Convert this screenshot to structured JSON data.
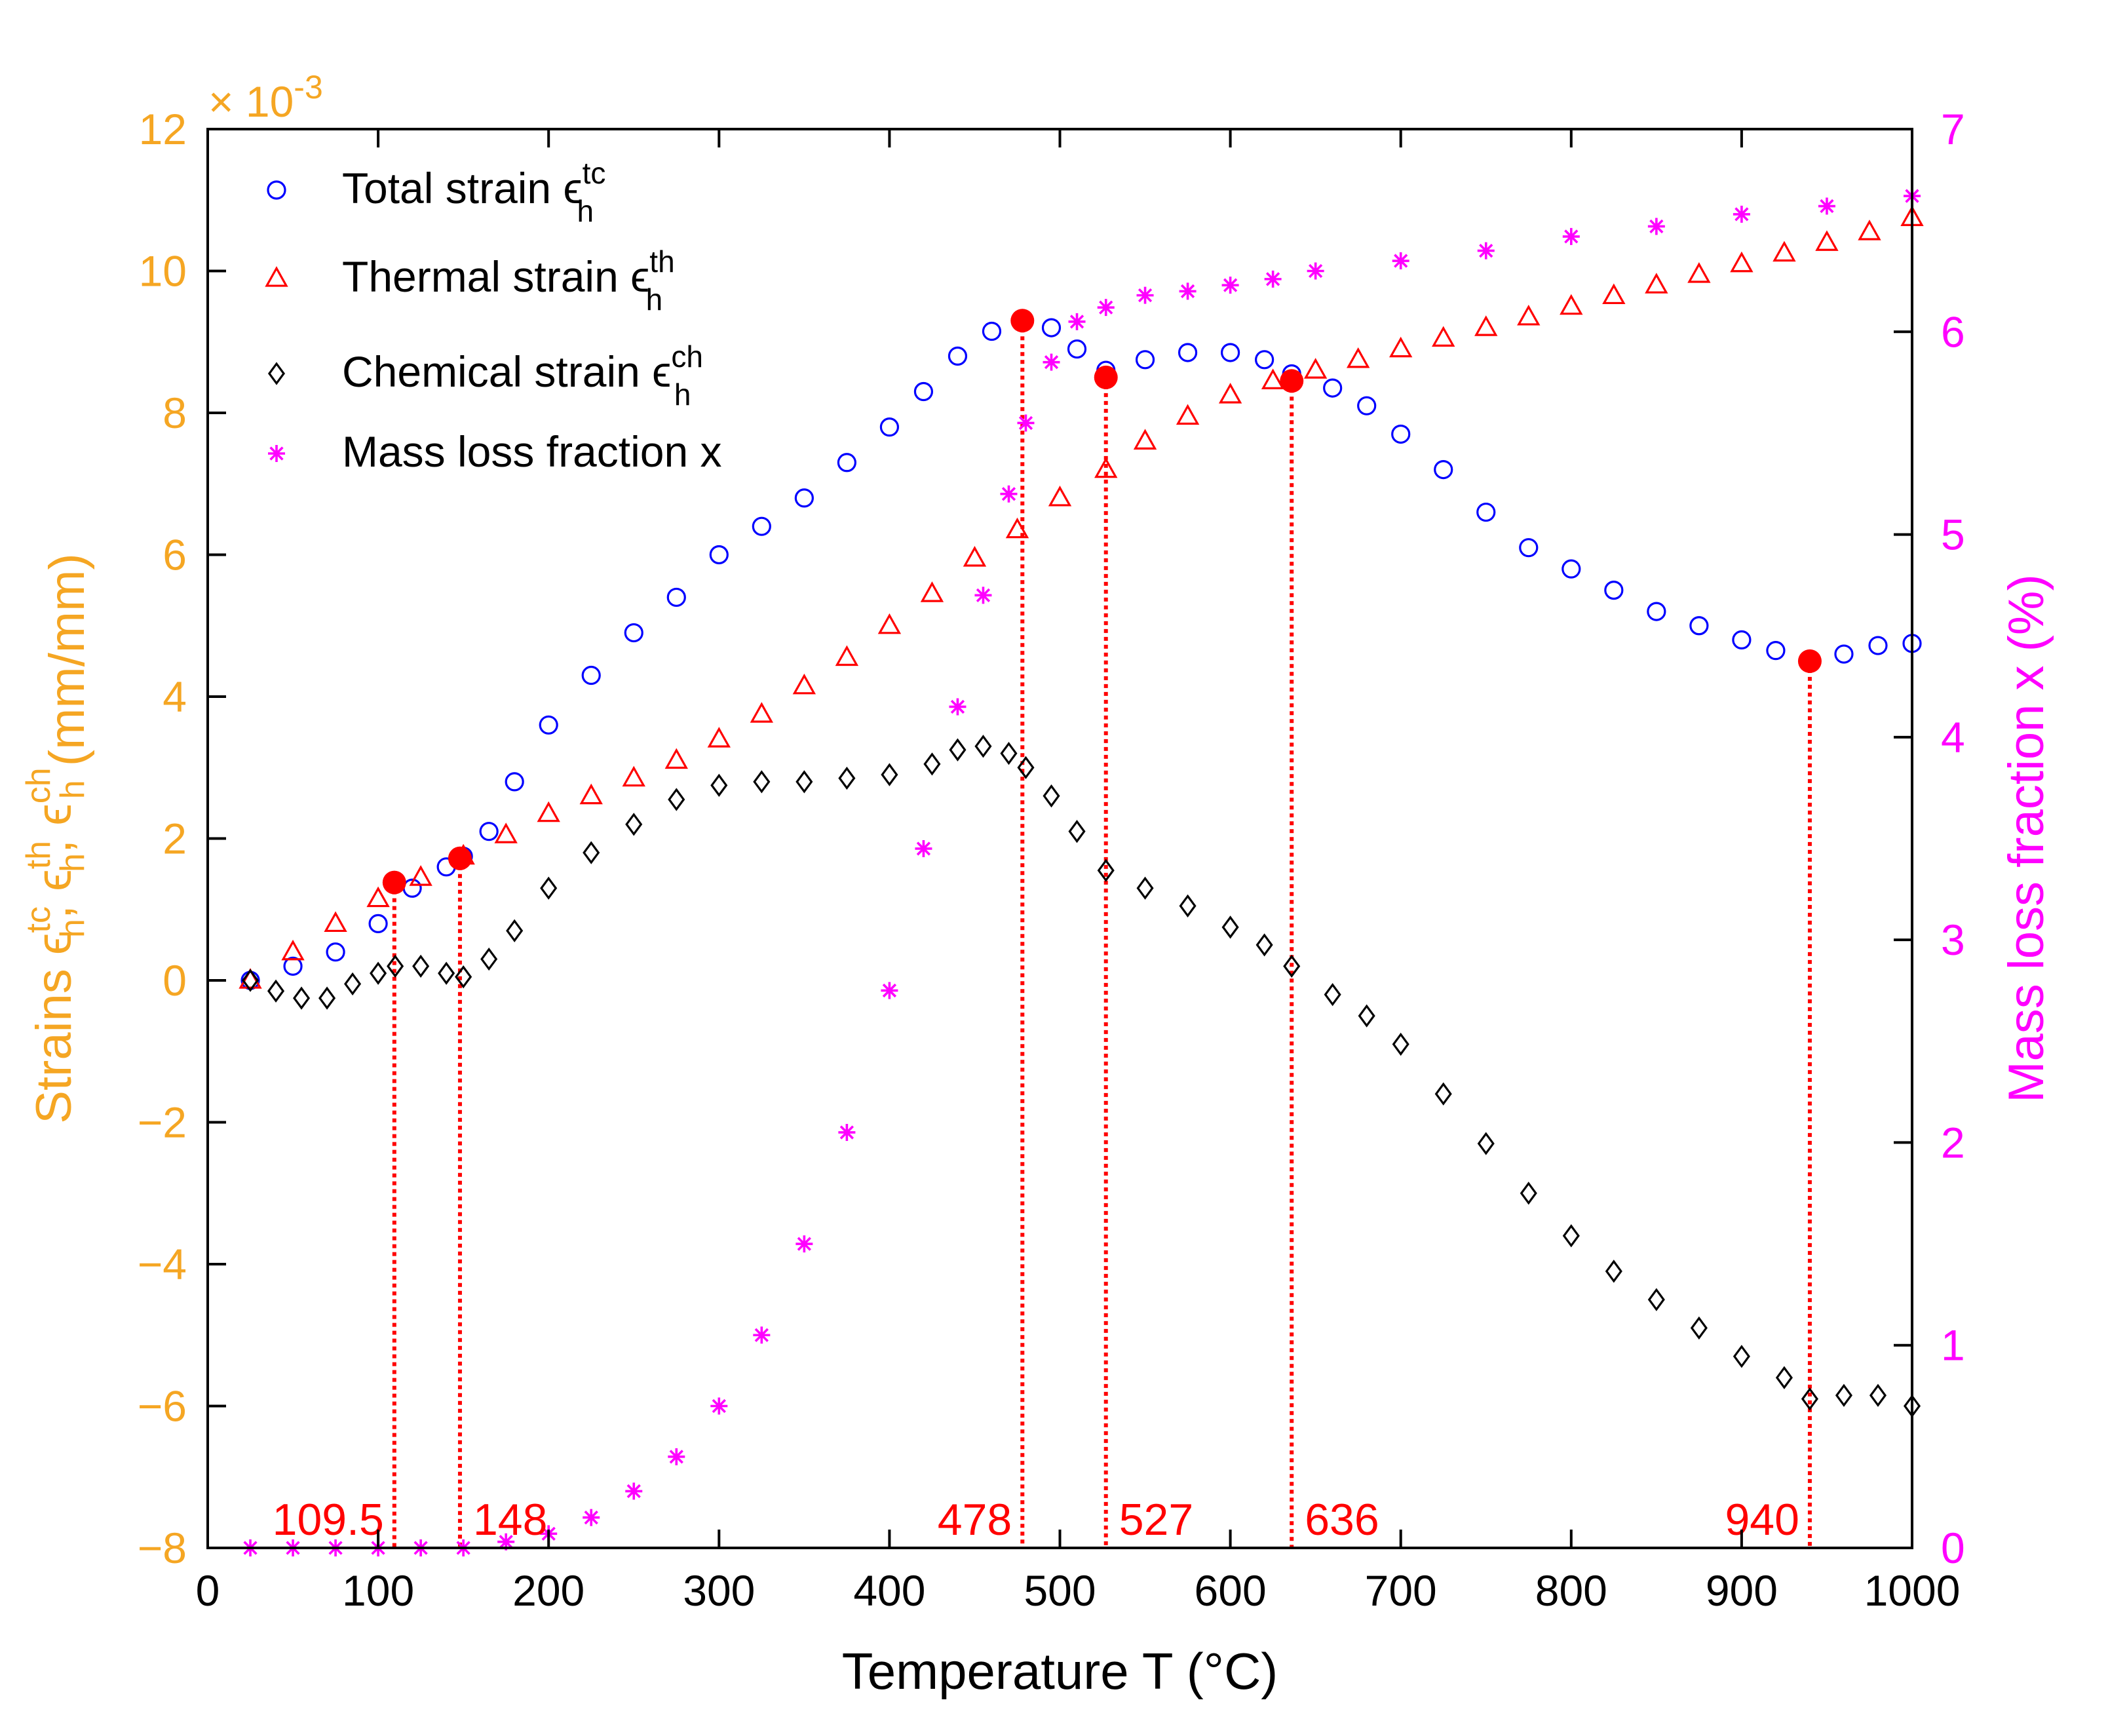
{
  "chart_data": {
    "type": "scatter",
    "x_axis": {
      "label": "Temperature T (°C)",
      "range": [
        0,
        1000
      ],
      "ticks": [
        0,
        100,
        200,
        300,
        400,
        500,
        600,
        700,
        800,
        900,
        1000
      ]
    },
    "y_axis_left": {
      "label_prefix": "Strains ",
      "label_units": " (mm/mm)",
      "eps": "ϵ",
      "sub": "h",
      "sup_tc": "tc",
      "sup_th": "th",
      "sup_ch": "ch",
      "sep": ", ",
      "range": [
        -8,
        12
      ],
      "ticks": [
        -8,
        -6,
        -4,
        -2,
        0,
        2,
        4,
        6,
        8,
        10,
        12
      ],
      "tick_labels": [
        "−8",
        "−6",
        "−4",
        "−2",
        "0",
        "2",
        "4",
        "6",
        "8",
        "10",
        "12"
      ],
      "multiplier_base": "× 10",
      "multiplier_exp": "-3",
      "color": "#f5a623"
    },
    "y_axis_right": {
      "label": "Mass loss fraction x (%)",
      "range": [
        0,
        7
      ],
      "ticks": [
        0,
        1,
        2,
        3,
        4,
        5,
        6,
        7
      ],
      "color": "#ff00ff"
    },
    "legend": {
      "placement": "top-left",
      "items": [
        {
          "label": "Total strain ",
          "eps": "ϵ",
          "sub": "h",
          "sup": "tc",
          "marker": "circle",
          "color": "#0000ff"
        },
        {
          "label": "Thermal strain ",
          "eps": "ϵ",
          "sub": "h",
          "sup": "th",
          "marker": "triangle",
          "color": "#ff0000"
        },
        {
          "label": "Chemical strain ",
          "eps": "ϵ",
          "sub": "h",
          "sup": "ch",
          "marker": "diamond",
          "color": "#000000"
        },
        {
          "label": "Mass loss fraction x",
          "eps": "",
          "sub": "",
          "sup": "",
          "marker": "star",
          "color": "#ff00ff"
        }
      ]
    },
    "series": [
      {
        "name": "Total strain",
        "axis": "left",
        "marker": "circle",
        "color": "#0000ff",
        "points": [
          [
            25,
            0.0
          ],
          [
            50,
            0.2
          ],
          [
            75,
            0.4
          ],
          [
            100,
            0.8
          ],
          [
            120,
            1.3
          ],
          [
            140,
            1.6
          ],
          [
            150,
            1.75
          ],
          [
            165,
            2.1
          ],
          [
            180,
            2.8
          ],
          [
            200,
            3.6
          ],
          [
            225,
            4.3
          ],
          [
            250,
            4.9
          ],
          [
            275,
            5.4
          ],
          [
            300,
            6.0
          ],
          [
            325,
            6.4
          ],
          [
            350,
            6.8
          ],
          [
            375,
            7.3
          ],
          [
            400,
            7.8
          ],
          [
            420,
            8.3
          ],
          [
            440,
            8.8
          ],
          [
            460,
            9.15
          ],
          [
            478,
            9.3
          ],
          [
            495,
            9.2
          ],
          [
            510,
            8.9
          ],
          [
            527,
            8.6
          ],
          [
            550,
            8.75
          ],
          [
            575,
            8.85
          ],
          [
            600,
            8.85
          ],
          [
            620,
            8.75
          ],
          [
            636,
            8.55
          ],
          [
            660,
            8.35
          ],
          [
            680,
            8.1
          ],
          [
            700,
            7.7
          ],
          [
            725,
            7.2
          ],
          [
            750,
            6.6
          ],
          [
            775,
            6.1
          ],
          [
            800,
            5.8
          ],
          [
            825,
            5.5
          ],
          [
            850,
            5.2
          ],
          [
            875,
            5.0
          ],
          [
            900,
            4.8
          ],
          [
            920,
            4.65
          ],
          [
            940,
            4.5
          ],
          [
            960,
            4.6
          ],
          [
            980,
            4.72
          ],
          [
            1000,
            4.75
          ]
        ]
      },
      {
        "name": "Thermal strain",
        "axis": "left",
        "marker": "triangle",
        "color": "#ff0000",
        "points": [
          [
            25,
            0.0
          ],
          [
            50,
            0.4
          ],
          [
            75,
            0.8
          ],
          [
            100,
            1.15
          ],
          [
            125,
            1.45
          ],
          [
            150,
            1.75
          ],
          [
            175,
            2.05
          ],
          [
            200,
            2.35
          ],
          [
            225,
            2.6
          ],
          [
            250,
            2.85
          ],
          [
            275,
            3.1
          ],
          [
            300,
            3.4
          ],
          [
            325,
            3.75
          ],
          [
            350,
            4.15
          ],
          [
            375,
            4.55
          ],
          [
            400,
            5.0
          ],
          [
            425,
            5.45
          ],
          [
            450,
            5.95
          ],
          [
            475,
            6.35
          ],
          [
            500,
            6.8
          ],
          [
            527,
            7.2
          ],
          [
            550,
            7.6
          ],
          [
            575,
            7.95
          ],
          [
            600,
            8.25
          ],
          [
            625,
            8.45
          ],
          [
            650,
            8.6
          ],
          [
            675,
            8.75
          ],
          [
            700,
            8.9
          ],
          [
            725,
            9.05
          ],
          [
            750,
            9.2
          ],
          [
            775,
            9.35
          ],
          [
            800,
            9.5
          ],
          [
            825,
            9.65
          ],
          [
            850,
            9.8
          ],
          [
            875,
            9.95
          ],
          [
            900,
            10.1
          ],
          [
            925,
            10.25
          ],
          [
            950,
            10.4
          ],
          [
            975,
            10.55
          ],
          [
            1000,
            10.75
          ]
        ]
      },
      {
        "name": "Chemical strain",
        "axis": "left",
        "marker": "diamond",
        "color": "#000000",
        "points": [
          [
            25,
            0.0
          ],
          [
            40,
            -0.15
          ],
          [
            55,
            -0.25
          ],
          [
            70,
            -0.25
          ],
          [
            85,
            -0.05
          ],
          [
            100,
            0.1
          ],
          [
            110,
            0.2
          ],
          [
            125,
            0.2
          ],
          [
            140,
            0.1
          ],
          [
            150,
            0.05
          ],
          [
            165,
            0.3
          ],
          [
            180,
            0.7
          ],
          [
            200,
            1.3
          ],
          [
            225,
            1.8
          ],
          [
            250,
            2.2
          ],
          [
            275,
            2.55
          ],
          [
            300,
            2.75
          ],
          [
            325,
            2.8
          ],
          [
            350,
            2.8
          ],
          [
            375,
            2.85
          ],
          [
            400,
            2.9
          ],
          [
            425,
            3.05
          ],
          [
            440,
            3.25
          ],
          [
            455,
            3.3
          ],
          [
            470,
            3.2
          ],
          [
            480,
            3.0
          ],
          [
            495,
            2.6
          ],
          [
            510,
            2.1
          ],
          [
            527,
            1.55
          ],
          [
            550,
            1.3
          ],
          [
            575,
            1.05
          ],
          [
            600,
            0.75
          ],
          [
            620,
            0.5
          ],
          [
            636,
            0.2
          ],
          [
            660,
            -0.2
          ],
          [
            680,
            -0.5
          ],
          [
            700,
            -0.9
          ],
          [
            725,
            -1.6
          ],
          [
            750,
            -2.3
          ],
          [
            775,
            -3.0
          ],
          [
            800,
            -3.6
          ],
          [
            825,
            -4.1
          ],
          [
            850,
            -4.5
          ],
          [
            875,
            -4.9
          ],
          [
            900,
            -5.3
          ],
          [
            925,
            -5.6
          ],
          [
            940,
            -5.9
          ],
          [
            960,
            -5.85
          ],
          [
            980,
            -5.85
          ],
          [
            1000,
            -6.0
          ]
        ]
      },
      {
        "name": "Mass loss fraction x",
        "axis": "right",
        "marker": "star",
        "color": "#ff00ff",
        "points": [
          [
            25,
            0.0
          ],
          [
            50,
            0.0
          ],
          [
            75,
            0.0
          ],
          [
            100,
            0.0
          ],
          [
            125,
            0.0
          ],
          [
            150,
            0.0
          ],
          [
            175,
            0.03
          ],
          [
            200,
            0.07
          ],
          [
            225,
            0.15
          ],
          [
            250,
            0.28
          ],
          [
            275,
            0.45
          ],
          [
            300,
            0.7
          ],
          [
            325,
            1.05
          ],
          [
            350,
            1.5
          ],
          [
            375,
            2.05
          ],
          [
            400,
            2.75
          ],
          [
            420,
            3.45
          ],
          [
            440,
            4.15
          ],
          [
            455,
            4.7
          ],
          [
            470,
            5.2
          ],
          [
            480,
            5.55
          ],
          [
            495,
            5.85
          ],
          [
            510,
            6.05
          ],
          [
            527,
            6.12
          ],
          [
            550,
            6.18
          ],
          [
            575,
            6.2
          ],
          [
            600,
            6.23
          ],
          [
            625,
            6.26
          ],
          [
            650,
            6.3
          ],
          [
            700,
            6.35
          ],
          [
            750,
            6.4
          ],
          [
            800,
            6.47
          ],
          [
            850,
            6.52
          ],
          [
            900,
            6.58
          ],
          [
            950,
            6.62
          ],
          [
            1000,
            6.67
          ]
        ]
      }
    ],
    "highlights": [
      {
        "x": 109.5,
        "y": 1.38,
        "label": "109.5"
      },
      {
        "x": 148,
        "y": 1.72,
        "label": "148"
      },
      {
        "x": 478,
        "y": 9.3,
        "label": "478"
      },
      {
        "x": 527,
        "y": 8.5,
        "label": "527"
      },
      {
        "x": 636,
        "y": 8.45,
        "label": "636"
      },
      {
        "x": 940,
        "y": 4.5,
        "label": "940"
      }
    ],
    "highlight_color": "#ff0000"
  }
}
